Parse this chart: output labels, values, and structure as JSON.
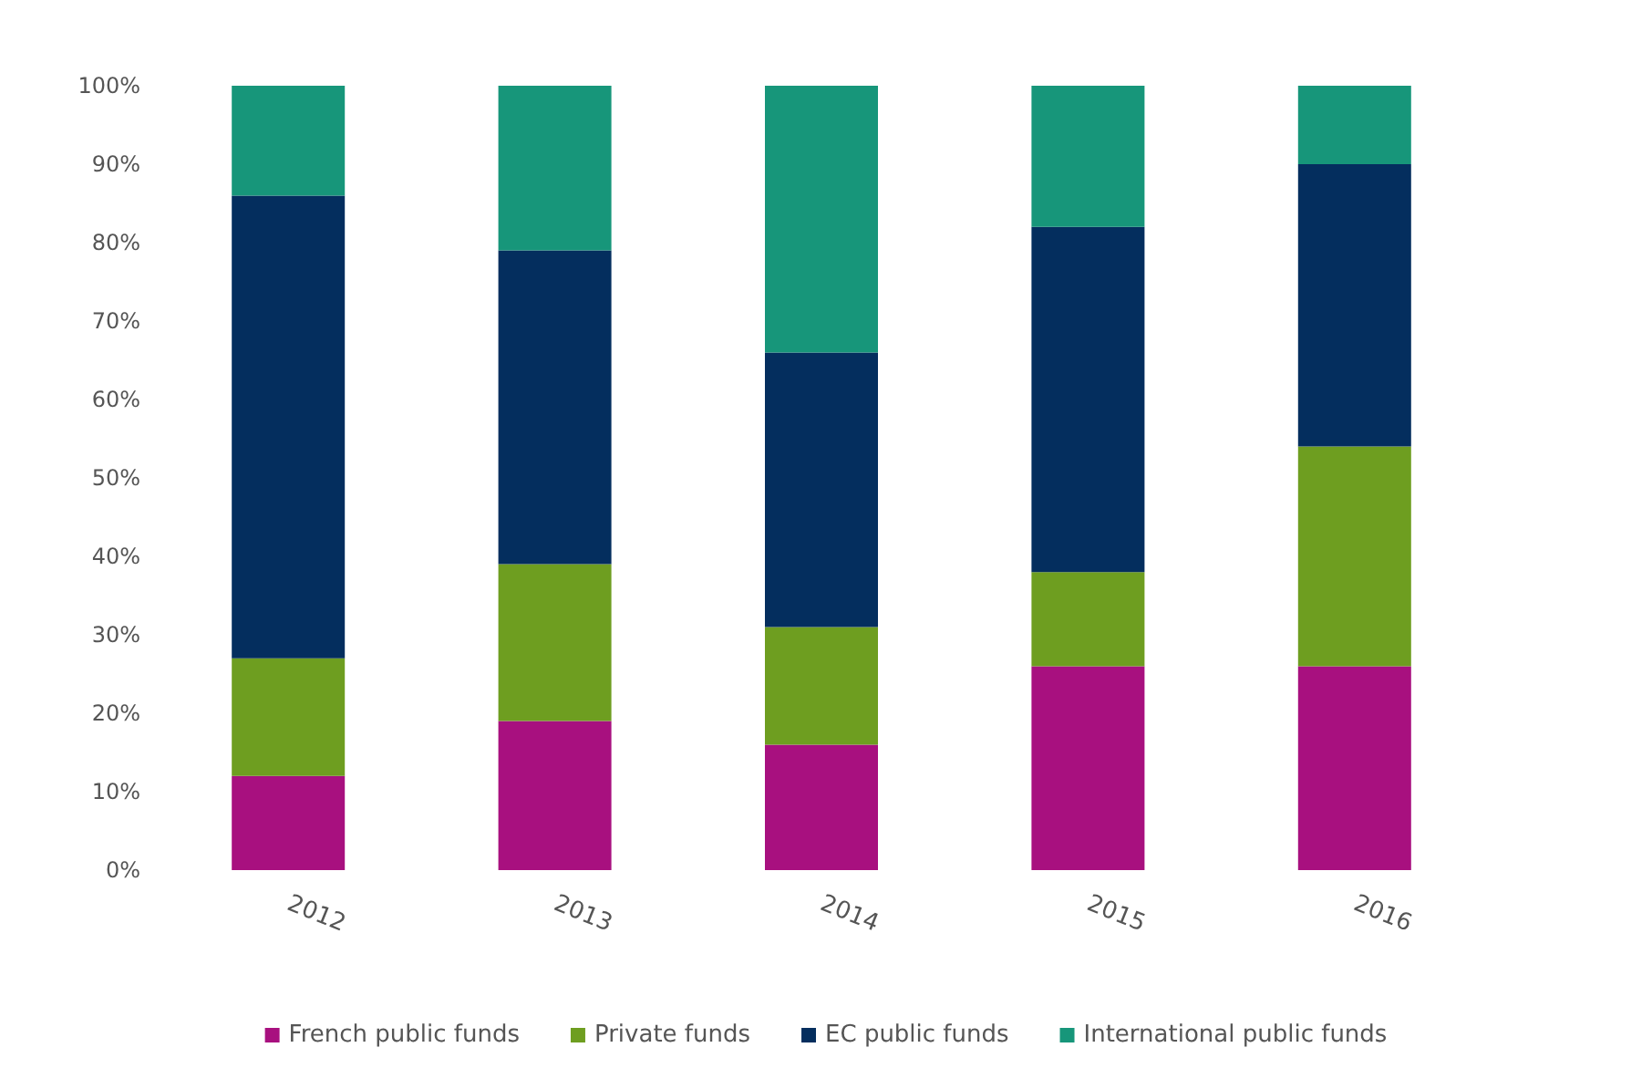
{
  "chart_data": {
    "type": "bar",
    "stacked": true,
    "categories": [
      "2012",
      "2013",
      "2014",
      "2015",
      "2016"
    ],
    "series": [
      {
        "name": "French public funds",
        "color": "#a8107f",
        "values": [
          12,
          19,
          16,
          26,
          26
        ]
      },
      {
        "name": "Private funds",
        "color": "#6e9e20",
        "values": [
          15,
          20,
          15,
          12,
          28
        ]
      },
      {
        "name": "EC public funds",
        "color": "#042e5e",
        "values": [
          59,
          40,
          35,
          44,
          36
        ]
      },
      {
        "name": "International public funds",
        "color": "#17967a",
        "values": [
          14,
          21,
          34,
          18,
          10
        ]
      }
    ],
    "ylim": [
      0,
      100
    ],
    "yticks": [
      {
        "value": 0,
        "label": "0%"
      },
      {
        "value": 10,
        "label": "10%"
      },
      {
        "value": 20,
        "label": "20%"
      },
      {
        "value": 30,
        "label": "30%"
      },
      {
        "value": 40,
        "label": "40%"
      },
      {
        "value": 50,
        "label": "50%"
      },
      {
        "value": 60,
        "label": "60%"
      },
      {
        "value": 70,
        "label": "70%"
      },
      {
        "value": 80,
        "label": "80%"
      },
      {
        "value": 90,
        "label": "90%"
      },
      {
        "value": 100,
        "label": "100%"
      }
    ],
    "grid": false,
    "legend": "bottom"
  }
}
